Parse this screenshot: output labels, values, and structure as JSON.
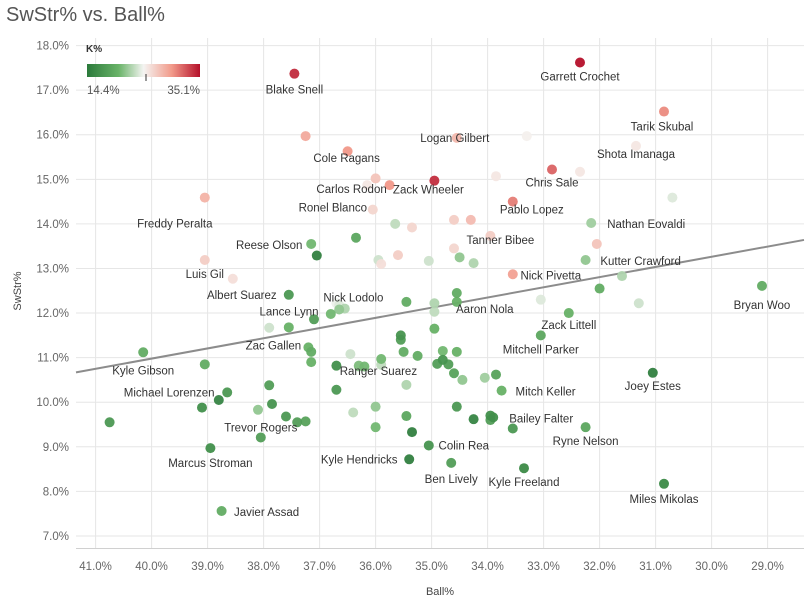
{
  "chart_data": {
    "type": "scatter",
    "title": "SwStr% vs. Ball%",
    "xlabel": "Ball%",
    "ylabel": "SwStr%",
    "xlim": [
      0.4135,
      0.2835
    ],
    "ylim": [
      0.0673,
      0.1817
    ],
    "x_ticks": [
      0.41,
      0.4,
      0.39,
      0.38,
      0.37,
      0.36,
      0.35,
      0.34,
      0.33,
      0.32,
      0.31,
      0.3,
      0.29
    ],
    "x_tick_labels": [
      "41.0%",
      "40.0%",
      "39.0%",
      "38.0%",
      "37.0%",
      "36.0%",
      "35.0%",
      "34.0%",
      "33.0%",
      "32.0%",
      "31.0%",
      "30.0%",
      "29.0%"
    ],
    "y_ticks": [
      0.07,
      0.08,
      0.09,
      0.1,
      0.11,
      0.12,
      0.13,
      0.14,
      0.15,
      0.16,
      0.17,
      0.18
    ],
    "y_tick_labels": [
      "7.0%",
      "8.0%",
      "9.0%",
      "10.0%",
      "11.0%",
      "12.0%",
      "13.0%",
      "14.0%",
      "15.0%",
      "16.0%",
      "17.0%",
      "18.0%"
    ],
    "color_legend": {
      "title": "K%",
      "min": 0.144,
      "max": 0.351,
      "min_label": "14.4%",
      "max_label": "35.1%"
    },
    "trendline": {
      "x": [
        0.4135,
        0.2835
      ],
      "y": [
        0.1067,
        0.1364
      ]
    },
    "points": [
      {
        "name": "Garrett Crochet",
        "x": 0.3235,
        "y": 0.1762,
        "k": 0.351
      },
      {
        "name": "Blake Snell",
        "x": 0.3745,
        "y": 0.1737,
        "k": 0.341
      },
      {
        "name": "Tarik Skubal",
        "x": 0.3085,
        "y": 0.1652,
        "k": 0.305
      },
      {
        "name": "Logan Gilbert",
        "x": 0.3455,
        "y": 0.1593,
        "k": 0.282
      },
      {
        "name": "Shota Imanaga",
        "x": 0.3135,
        "y": 0.1575,
        "k": 0.255
      },
      {
        "name": "Cole Ragans",
        "x": 0.365,
        "y": 0.1563,
        "k": 0.3
      },
      {
        "name": "Carlos Rodon",
        "x": 0.3575,
        "y": 0.1487,
        "k": 0.3
      },
      {
        "name": "Chris Sale",
        "x": 0.3285,
        "y": 0.1522,
        "k": 0.32
      },
      {
        "name": "Zack Wheeler",
        "x": 0.3495,
        "y": 0.1497,
        "k": 0.34
      },
      {
        "name": "Freddy Peralta",
        "x": 0.3905,
        "y": 0.1459,
        "k": 0.285
      },
      {
        "name": "Pablo Lopez",
        "x": 0.3355,
        "y": 0.145,
        "k": 0.31
      },
      {
        "name": "Ronel Blanco",
        "x": 0.3605,
        "y": 0.1432,
        "k": 0.265
      },
      {
        "name": "Nathan Eovaldi",
        "x": 0.3215,
        "y": 0.1402,
        "k": 0.22
      },
      {
        "name": "Reese Olson",
        "x": 0.3715,
        "y": 0.1355,
        "k": 0.205
      },
      {
        "name": "Tanner Bibee",
        "x": 0.3395,
        "y": 0.1373,
        "k": 0.27
      },
      {
        "name": "Kutter Crawford",
        "x": 0.3225,
        "y": 0.1319,
        "k": 0.215
      },
      {
        "name": "Luis Gil",
        "x": 0.3905,
        "y": 0.1319,
        "k": 0.27
      },
      {
        "name": "Nick Pivetta",
        "x": 0.3355,
        "y": 0.1287,
        "k": 0.295
      },
      {
        "name": "Albert Suarez",
        "x": 0.3755,
        "y": 0.1241,
        "k": 0.175
      },
      {
        "name": "Nick Lodolo",
        "x": 0.367,
        "y": 0.1222,
        "k": 0.245
      },
      {
        "name": "Bryan Woo",
        "x": 0.291,
        "y": 0.1261,
        "k": 0.195
      },
      {
        "name": "Lance Lynn",
        "x": 0.371,
        "y": 0.1186,
        "k": 0.18
      },
      {
        "name": "Aaron Nola",
        "x": 0.3455,
        "y": 0.1225,
        "k": 0.2
      },
      {
        "name": "Zack Littell",
        "x": 0.3255,
        "y": 0.12,
        "k": 0.2
      },
      {
        "name": "Mitchell Parker",
        "x": 0.3305,
        "y": 0.115,
        "k": 0.19
      },
      {
        "name": "Zac Gallen",
        "x": 0.372,
        "y": 0.1123,
        "k": 0.2
      },
      {
        "name": "Kyle Gibson",
        "x": 0.4015,
        "y": 0.1112,
        "k": 0.195
      },
      {
        "name": "Michael Lorenzen",
        "x": 0.3865,
        "y": 0.1022,
        "k": 0.175
      },
      {
        "name": "Joey Estes",
        "x": 0.3105,
        "y": 0.1066,
        "k": 0.15
      },
      {
        "name": "Ranger Suarez",
        "x": 0.3545,
        "y": 0.1039,
        "k": 0.225
      },
      {
        "name": "Mitch Keller",
        "x": 0.3375,
        "y": 0.1026,
        "k": 0.2
      },
      {
        "name": "Trevor Rogers",
        "x": 0.3805,
        "y": 0.0921,
        "k": 0.18
      },
      {
        "name": "Bailey Falter",
        "x": 0.339,
        "y": 0.0966,
        "k": 0.165
      },
      {
        "name": "Ryne Nelson",
        "x": 0.3225,
        "y": 0.0944,
        "k": 0.19
      },
      {
        "name": "Colin Rea",
        "x": 0.3505,
        "y": 0.0903,
        "k": 0.17
      },
      {
        "name": "Marcus Stroman",
        "x": 0.3895,
        "y": 0.0897,
        "k": 0.165
      },
      {
        "name": "Kyle Hendricks",
        "x": 0.354,
        "y": 0.0872,
        "k": 0.15
      },
      {
        "name": "Ben Lively",
        "x": 0.3465,
        "y": 0.0864,
        "k": 0.18
      },
      {
        "name": "Kyle Freeland",
        "x": 0.3335,
        "y": 0.0852,
        "k": 0.16
      },
      {
        "name": "Miles Mikolas",
        "x": 0.3085,
        "y": 0.0817,
        "k": 0.16
      },
      {
        "name": "Javier Assad",
        "x": 0.3875,
        "y": 0.0756,
        "k": 0.195
      },
      {
        "name": "",
        "x": 0.3725,
        "y": 0.1597,
        "k": 0.29
      },
      {
        "name": "",
        "x": 0.36,
        "y": 0.1502,
        "k": 0.275
      },
      {
        "name": "",
        "x": 0.3615,
        "y": 0.1487,
        "k": 0.255
      },
      {
        "name": "",
        "x": 0.333,
        "y": 0.1597,
        "k": 0.25
      },
      {
        "name": "",
        "x": 0.3385,
        "y": 0.1507,
        "k": 0.255
      },
      {
        "name": "",
        "x": 0.3235,
        "y": 0.1517,
        "k": 0.255
      },
      {
        "name": "",
        "x": 0.307,
        "y": 0.1459,
        "k": 0.24
      },
      {
        "name": "",
        "x": 0.3205,
        "y": 0.1355,
        "k": 0.275
      },
      {
        "name": "",
        "x": 0.343,
        "y": 0.1409,
        "k": 0.28
      },
      {
        "name": "",
        "x": 0.346,
        "y": 0.1409,
        "k": 0.27
      },
      {
        "name": "",
        "x": 0.3535,
        "y": 0.1392,
        "k": 0.265
      },
      {
        "name": "",
        "x": 0.3565,
        "y": 0.14,
        "k": 0.23
      },
      {
        "name": "",
        "x": 0.356,
        "y": 0.133,
        "k": 0.27
      },
      {
        "name": "",
        "x": 0.359,
        "y": 0.131,
        "k": 0.26
      },
      {
        "name": "",
        "x": 0.3505,
        "y": 0.1317,
        "k": 0.235
      },
      {
        "name": "",
        "x": 0.346,
        "y": 0.1345,
        "k": 0.265
      },
      {
        "name": "",
        "x": 0.345,
        "y": 0.1325,
        "k": 0.215
      },
      {
        "name": "",
        "x": 0.3425,
        "y": 0.1312,
        "k": 0.225
      },
      {
        "name": "",
        "x": 0.3635,
        "y": 0.1369,
        "k": 0.19
      },
      {
        "name": "",
        "x": 0.3705,
        "y": 0.1329,
        "k": 0.15
      },
      {
        "name": "",
        "x": 0.3855,
        "y": 0.1277,
        "k": 0.26
      },
      {
        "name": "",
        "x": 0.3595,
        "y": 0.1319,
        "k": 0.235
      },
      {
        "name": "",
        "x": 0.3545,
        "y": 0.1225,
        "k": 0.195
      },
      {
        "name": "",
        "x": 0.3495,
        "y": 0.1222,
        "k": 0.225
      },
      {
        "name": "",
        "x": 0.3495,
        "y": 0.1203,
        "k": 0.23
      },
      {
        "name": "",
        "x": 0.3455,
        "y": 0.1245,
        "k": 0.195
      },
      {
        "name": "",
        "x": 0.3665,
        "y": 0.1208,
        "k": 0.215
      },
      {
        "name": "",
        "x": 0.3655,
        "y": 0.121,
        "k": 0.225
      },
      {
        "name": "",
        "x": 0.368,
        "y": 0.1198,
        "k": 0.205
      },
      {
        "name": "",
        "x": 0.3665,
        "y": 0.1218,
        "k": 0.24
      },
      {
        "name": "",
        "x": 0.313,
        "y": 0.1222,
        "k": 0.235
      },
      {
        "name": "",
        "x": 0.316,
        "y": 0.1283,
        "k": 0.225
      },
      {
        "name": "",
        "x": 0.3305,
        "y": 0.123,
        "k": 0.24
      },
      {
        "name": "",
        "x": 0.32,
        "y": 0.1255,
        "k": 0.195
      },
      {
        "name": "",
        "x": 0.3495,
        "y": 0.1165,
        "k": 0.2
      },
      {
        "name": "",
        "x": 0.3525,
        "y": 0.1104,
        "k": 0.195
      },
      {
        "name": "",
        "x": 0.3555,
        "y": 0.114,
        "k": 0.18
      },
      {
        "name": "",
        "x": 0.3555,
        "y": 0.115,
        "k": 0.17
      },
      {
        "name": "",
        "x": 0.355,
        "y": 0.1113,
        "k": 0.195
      },
      {
        "name": "",
        "x": 0.348,
        "y": 0.1115,
        "k": 0.205
      },
      {
        "name": "",
        "x": 0.3455,
        "y": 0.1113,
        "k": 0.2
      },
      {
        "name": "",
        "x": 0.348,
        "y": 0.1095,
        "k": 0.17
      },
      {
        "name": "",
        "x": 0.347,
        "y": 0.1085,
        "k": 0.18
      },
      {
        "name": "",
        "x": 0.346,
        "y": 0.1065,
        "k": 0.185
      },
      {
        "name": "",
        "x": 0.3445,
        "y": 0.105,
        "k": 0.215
      },
      {
        "name": "",
        "x": 0.359,
        "y": 0.1097,
        "k": 0.205
      },
      {
        "name": "",
        "x": 0.359,
        "y": 0.1084,
        "k": 0.23
      },
      {
        "name": "",
        "x": 0.363,
        "y": 0.108,
        "k": 0.225
      },
      {
        "name": "",
        "x": 0.3645,
        "y": 0.1108,
        "k": 0.235
      },
      {
        "name": "",
        "x": 0.367,
        "y": 0.1082,
        "k": 0.165
      },
      {
        "name": "",
        "x": 0.3715,
        "y": 0.1113,
        "k": 0.195
      },
      {
        "name": "",
        "x": 0.3715,
        "y": 0.109,
        "k": 0.2
      },
      {
        "name": "",
        "x": 0.3755,
        "y": 0.1168,
        "k": 0.2
      },
      {
        "name": "",
        "x": 0.379,
        "y": 0.1167,
        "k": 0.235
      },
      {
        "name": "",
        "x": 0.363,
        "y": 0.1082,
        "k": 0.21
      },
      {
        "name": "",
        "x": 0.362,
        "y": 0.108,
        "k": 0.205
      },
      {
        "name": "",
        "x": 0.3385,
        "y": 0.1062,
        "k": 0.185
      },
      {
        "name": "",
        "x": 0.3405,
        "y": 0.1055,
        "k": 0.22
      },
      {
        "name": "",
        "x": 0.349,
        "y": 0.1086,
        "k": 0.18
      },
      {
        "name": "",
        "x": 0.388,
        "y": 0.1005,
        "k": 0.155
      },
      {
        "name": "",
        "x": 0.3785,
        "y": 0.0996,
        "k": 0.17
      },
      {
        "name": "",
        "x": 0.374,
        "y": 0.0955,
        "k": 0.18
      },
      {
        "name": "",
        "x": 0.376,
        "y": 0.0968,
        "k": 0.175
      },
      {
        "name": "",
        "x": 0.381,
        "y": 0.0983,
        "k": 0.215
      },
      {
        "name": "",
        "x": 0.379,
        "y": 0.1038,
        "k": 0.18
      },
      {
        "name": "",
        "x": 0.391,
        "y": 0.0988,
        "k": 0.165
      },
      {
        "name": "",
        "x": 0.3725,
        "y": 0.0957,
        "k": 0.185
      },
      {
        "name": "",
        "x": 0.367,
        "y": 0.1028,
        "k": 0.175
      },
      {
        "name": "",
        "x": 0.36,
        "y": 0.099,
        "k": 0.215
      },
      {
        "name": "",
        "x": 0.364,
        "y": 0.0977,
        "k": 0.23
      },
      {
        "name": "",
        "x": 0.36,
        "y": 0.0944,
        "k": 0.205
      },
      {
        "name": "",
        "x": 0.3545,
        "y": 0.0969,
        "k": 0.19
      },
      {
        "name": "",
        "x": 0.3535,
        "y": 0.0933,
        "k": 0.15
      },
      {
        "name": "",
        "x": 0.3455,
        "y": 0.099,
        "k": 0.175
      },
      {
        "name": "",
        "x": 0.3425,
        "y": 0.0962,
        "k": 0.155
      },
      {
        "name": "",
        "x": 0.3395,
        "y": 0.097,
        "k": 0.165
      },
      {
        "name": "",
        "x": 0.3355,
        "y": 0.0941,
        "k": 0.175
      },
      {
        "name": "",
        "x": 0.3395,
        "y": 0.096,
        "k": 0.18
      },
      {
        "name": "",
        "x": 0.4075,
        "y": 0.0955,
        "k": 0.175
      },
      {
        "name": "",
        "x": 0.3905,
        "y": 0.1085,
        "k": 0.195
      }
    ]
  }
}
